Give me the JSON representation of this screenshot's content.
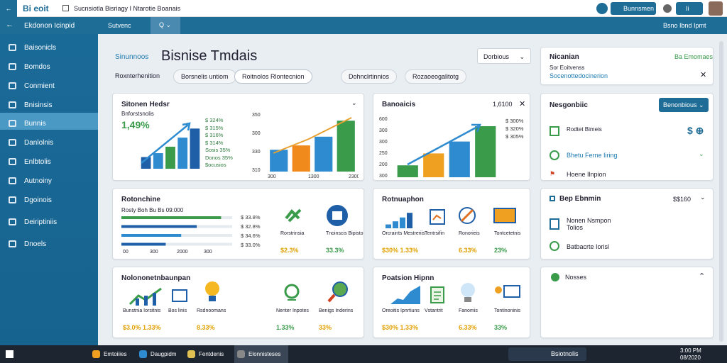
{
  "topbar": {
    "logo": "Bi eoit",
    "tab_title": "Sucnsiotla Bisriagy I Ntarotie Boanais",
    "button": "Bunnsmen",
    "button2": "Ii"
  },
  "navbar": {
    "title": "Ekdonon Icinpid",
    "tab": "Sutvenc",
    "right": "Bsno Ibnd Ipmt"
  },
  "sidebar": {
    "items": [
      "Baisonicls",
      "Bomdos",
      "Conmient",
      "Bnisinsis",
      "Bunnis",
      "Danlolnis",
      "Enlbtolis",
      "Autnoiny",
      "Dgoinois",
      "Deiriptiniis",
      "Dnoels"
    ]
  },
  "main": {
    "eyebrow": "Sinunnoos",
    "title": "Bisnise Tmdais",
    "dropdown": "Dorbious",
    "tabs": [
      "Roxnterhenition",
      "Borsnelis untiom",
      "Roitnolos  Rlontecnion",
      "Dohnclrtinnios",
      "Rozaoeogalitotg"
    ]
  },
  "cards": {
    "a": {
      "title": "Sitonen Hedsr",
      "subtitle": "Bnforstsnolis",
      "big": "1,49%",
      "legend": [
        "$ 324%",
        "$ 315%",
        "$ 316%",
        "$ 314%",
        "Sosis 35%",
        "Donos 35%",
        "$ocusios"
      ],
      "mini": {
        "type": "bar",
        "values": [
          18,
          24,
          34,
          48,
          62
        ],
        "colors": [
          "#1f5fa8",
          "#2f8bd0",
          "#3a9b4a",
          "#2f8bd0",
          "#1f5fa8"
        ],
        "ylim": [
          0,
          70
        ]
      },
      "chart": {
        "type": "bar",
        "values": [
          30,
          36,
          48,
          70
        ],
        "colors": [
          "#2f8bd0",
          "#f08a1c",
          "#2f8bd0",
          "#3a9b4a"
        ],
        "ylim": [
          0,
          80
        ],
        "ylabels": [
          "350",
          "300",
          "330",
          "310"
        ],
        "xlabels": [
          "300",
          "1300",
          "2300"
        ]
      }
    },
    "b": {
      "title": "Banoaicis",
      "value": "1,6100",
      "legend": [
        "$ 300%",
        "$ 320%",
        "$ 305%"
      ],
      "chart": {
        "type": "bar",
        "values": [
          14,
          28,
          42,
          60
        ],
        "colors": [
          "#3a9b4a",
          "#f0a020",
          "#2f8bd0",
          "#3a9b4a"
        ],
        "ylim": [
          0,
          70
        ],
        "ylabels": [
          "600",
          "300",
          "300",
          "250",
          "200",
          "300"
        ]
      }
    },
    "c": {
      "title": "Rotonchine",
      "subtitle": "Rosty Boh Bu Bs 09:000",
      "chart": {
        "type": "hbar",
        "values": [
          90,
          68,
          54,
          40
        ],
        "colors": [
          "#3a9b4a",
          "#1f5fa8",
          "#2f8bd0",
          "#1f5fa8"
        ],
        "xlim": [
          0,
          100
        ]
      },
      "xlabels": [
        "00",
        "300",
        "2000",
        "300"
      ],
      "legend": [
        "$ 33.8%",
        "$ 32.8%",
        "$ 34.6%",
        "$ 33.0%"
      ],
      "items": [
        {
          "label": "Rorstrinsia",
          "value": "$2.3%"
        },
        {
          "label": "Tnoinscis Bipisto",
          "value": "33.3%"
        }
      ]
    },
    "d": {
      "title": "Rotnuaphon",
      "mini": {
        "type": "bar",
        "values": [
          10,
          18,
          28,
          40
        ],
        "colors": [
          "#2f8bd0",
          "#2f8bd0",
          "#2f8bd0",
          "#1f5fa8"
        ],
        "ylim": [
          0,
          44
        ]
      },
      "items": [
        {
          "label": "Orcraints Mestreriis",
          "value": "$30% 1.33%"
        },
        {
          "label": "Tentrsifin",
          "value": ""
        },
        {
          "label": "Ronorieis",
          "value": "6.33%"
        },
        {
          "label": "Tontcetetnis",
          "value": "23%"
        }
      ]
    },
    "e": {
      "title": "Nolononetnbaunpan",
      "items": [
        {
          "label": "Bunstnia Iorsitnis",
          "value": "$3.0% 1.33%"
        },
        {
          "label": "Bos linis",
          "value": ""
        },
        {
          "label": "Rsdnoomans",
          "value": "8.33%"
        },
        {
          "label": "Nenter Inpotes",
          "value": "1.33%"
        },
        {
          "label": "Benigs Inderins",
          "value": "33%"
        }
      ]
    },
    "f": {
      "title": "Poatsion Hipnn",
      "items": [
        {
          "label": "Oreoitis Ipnrtiuns",
          "value": "$30% 1.33%"
        },
        {
          "label": "Vstantrit",
          "value": ""
        },
        {
          "label": "Fanomis",
          "value": "6.33%"
        },
        {
          "label": "Tontinoninis",
          "value": "33%"
        }
      ]
    }
  },
  "right": {
    "notice": {
      "title": "Nicanian",
      "badge": "Ba Emomaes",
      "line": "Sor Eoitvenss",
      "link": "Socenottedocinerion"
    },
    "panel1": {
      "title": "Nesgonbiic",
      "button": "Benonbious",
      "items": [
        "Rodtet Bimeis",
        "Bhetu Ferne Iiring",
        "Hoene Ilnpion"
      ]
    },
    "panel2": {
      "title": "Bep Ebnmin",
      "value": "$$160",
      "items": [
        "Nonen Nsmpon Tolios",
        "Batbacrte Iorisl"
      ]
    },
    "panel3": {
      "title": "Nosses"
    }
  },
  "taskbar": {
    "apps": [
      "Emtoiiies",
      "Daugpidm",
      "Fentdenis",
      "Elonnisteses"
    ],
    "search": "Bsiotnolis",
    "time": "3:00 PM",
    "date": "08/2020"
  }
}
